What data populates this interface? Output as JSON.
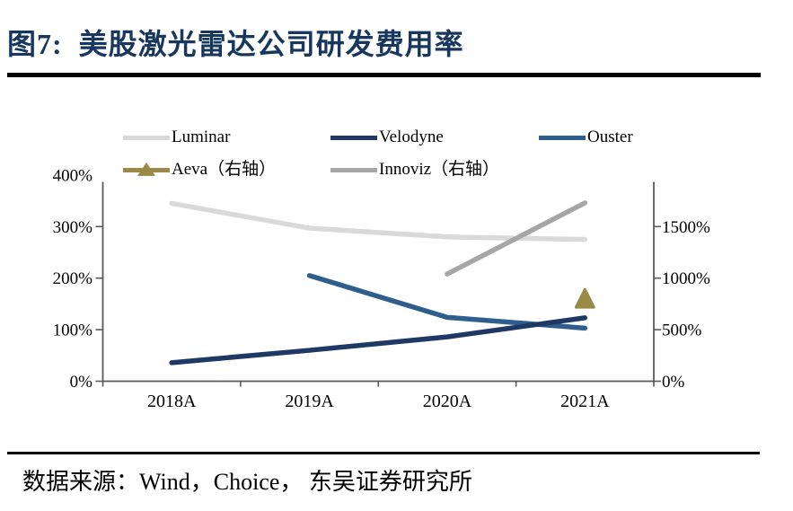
{
  "header": {
    "title": "图7:  美股激光雷达公司研发费用率"
  },
  "footer": {
    "source": "数据来源：Wind，Choice， 东吴证券研究所"
  },
  "colors": {
    "title_navy": "#17375e",
    "rule_black": "#000000",
    "axis_gray": "#595959",
    "luminar": "#d9d9d9",
    "velodyne": "#1f3864",
    "ouster": "#2e5e8e",
    "aeva": "#9a8a46",
    "innoviz": "#a6a6a6"
  },
  "chart_data": {
    "type": "line",
    "title": "美股激光雷达公司研发费用率",
    "unit": "percent",
    "categories": [
      "2018A",
      "2019A",
      "2020A",
      "2021A"
    ],
    "series": [
      {
        "name": "Luminar",
        "axis": "left",
        "color": "#d9d9d9",
        "marker": "none",
        "values": [
          345,
          297,
          280,
          275
        ]
      },
      {
        "name": "Velodyne",
        "axis": "left",
        "color": "#1f3864",
        "marker": "none",
        "values": [
          36,
          60,
          86,
          123
        ]
      },
      {
        "name": "Ouster",
        "axis": "left",
        "color": "#2e5e8e",
        "marker": "none",
        "values": [
          null,
          205,
          124,
          103
        ]
      },
      {
        "name": "Aeva（右轴）",
        "axis": "right",
        "color": "#9a8a46",
        "marker": "triangle",
        "values": [
          null,
          null,
          null,
          800
        ]
      },
      {
        "name": "Innoviz（右轴）",
        "axis": "right",
        "color": "#a6a6a6",
        "marker": "none",
        "values": [
          null,
          null,
          1040,
          1730
        ]
      }
    ],
    "left_axis": {
      "min": 0,
      "max": 400,
      "tick_values": [
        0,
        100,
        200,
        300,
        400
      ],
      "tick_labels": [
        "0%",
        "100%",
        "200%",
        "300%",
        "400%"
      ]
    },
    "right_axis": {
      "min": 0,
      "max": 2000,
      "tick_values": [
        0,
        500,
        1000,
        1500
      ],
      "tick_labels": [
        "0%",
        "500%",
        "1000%",
        "1500%"
      ]
    },
    "legend_position": "top",
    "grid": false
  }
}
